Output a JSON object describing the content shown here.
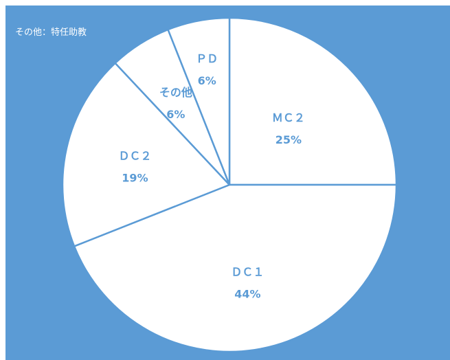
{
  "chart_data": {
    "type": "pie",
    "title": "",
    "note": "その他：特任助教",
    "slices": [
      {
        "label": "ＭＣ２",
        "value": 25,
        "value_label": "25%"
      },
      {
        "label": "ＤＣ１",
        "value": 44,
        "value_label": "44%"
      },
      {
        "label": "ＤＣ２",
        "value": 19,
        "value_label": "19%"
      },
      {
        "label": "その他",
        "value": 6,
        "value_label": "6%"
      },
      {
        "label": "ＰＤ",
        "value": 6,
        "value_label": "6%"
      }
    ],
    "start_angle_deg": 0,
    "direction": "clockwise",
    "legend": "none",
    "colors": {
      "background": "#5b9bd5",
      "slice_fill": "#ffffff",
      "slice_border": "#5b9bd5",
      "label_text": "#5b9bd5",
      "note_text": "#ffffff"
    }
  }
}
